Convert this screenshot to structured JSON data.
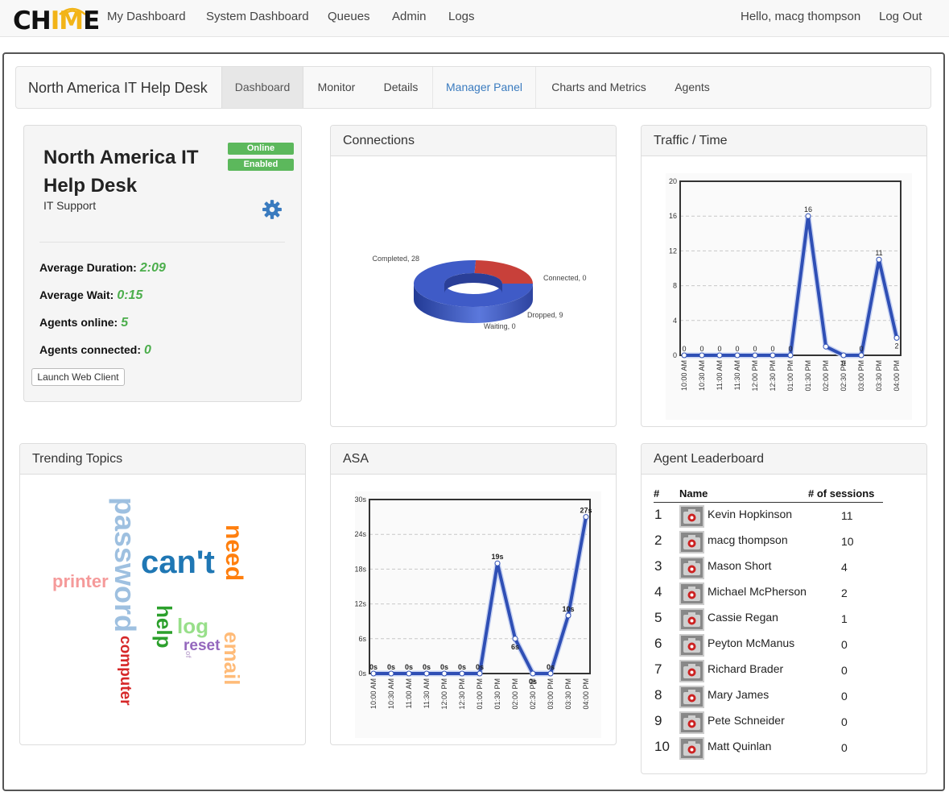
{
  "topnav": {
    "logo": {
      "before": "CH",
      "highlight": "IM",
      "after": "E"
    },
    "links": [
      "My Dashboard",
      "System Dashboard",
      "Queues",
      "Admin",
      "Logs"
    ],
    "greeting": "Hello, macg thompson",
    "logout": "Log Out"
  },
  "queue_nav": {
    "title": "North America IT Help Desk",
    "tabs": [
      "Dashboard",
      "Monitor",
      "Details",
      "Manager Panel",
      "Charts and Metrics",
      "Agents"
    ],
    "active_tab": "Dashboard"
  },
  "queue_summary": {
    "title": "North America IT Help Desk",
    "subtitle": "IT Support",
    "status_badges": [
      "Online",
      "Enabled"
    ],
    "stats": [
      {
        "label": "Average Duration:",
        "value": "2:09"
      },
      {
        "label": "Average Wait:",
        "value": "0:15"
      },
      {
        "label": "Agents online:",
        "value": "5"
      },
      {
        "label": "Agents connected:",
        "value": "0"
      }
    ],
    "launch_button": "Launch Web Client"
  },
  "panels": {
    "connections": "Connections",
    "traffic": "Traffic / Time",
    "trending": "Trending Topics",
    "asa": "ASA",
    "leaderboard": "Agent Leaderboard"
  },
  "chart_data": [
    {
      "id": "connections",
      "type": "pie",
      "style": "3d-donut",
      "labels": [
        "Completed",
        "Connected",
        "Dropped",
        "Waiting"
      ],
      "values": [
        28,
        0,
        9,
        0
      ],
      "colors": [
        "#3f5bc7",
        "#3a9a3a",
        "#c8403a",
        "#e8a020"
      ]
    },
    {
      "id": "traffic",
      "type": "line",
      "categories": [
        "10:00 AM",
        "10:30 AM",
        "11:00 AM",
        "11:30 AM",
        "12:00 PM",
        "12:30 PM",
        "01:00 PM",
        "01:30 PM",
        "02:00 PM",
        "02:30 PM",
        "03:00 PM",
        "03:30 PM",
        "04:00 PM"
      ],
      "values": [
        0,
        0,
        0,
        0,
        0,
        0,
        0,
        16,
        1,
        0,
        0,
        11,
        2
      ],
      "ylim": [
        0,
        20
      ],
      "yticks": [
        "0",
        "4",
        "8",
        "12",
        "16",
        "20"
      ],
      "point_labels": [
        "0",
        "0",
        "0",
        "0",
        "0",
        "0",
        "0",
        "16",
        "",
        "0",
        "0",
        "11",
        "2"
      ],
      "color": "#2f4fb5",
      "grid": true
    },
    {
      "id": "asa",
      "type": "line",
      "categories": [
        "10:00 AM",
        "10:30 AM",
        "11:00 AM",
        "11:30 AM",
        "12:00 PM",
        "12:30 PM",
        "01:00 PM",
        "01:30 PM",
        "02:00 PM",
        "02:30 PM",
        "03:00 PM",
        "03:30 PM",
        "04:00 PM"
      ],
      "values": [
        0,
        0,
        0,
        0,
        0,
        0,
        0,
        19,
        6,
        0,
        0,
        10,
        27
      ],
      "ylim": [
        0,
        30
      ],
      "yticks": [
        "0s",
        "6s",
        "12s",
        "18s",
        "24s",
        "30s"
      ],
      "point_labels": [
        "0s",
        "0s",
        "0s",
        "0s",
        "0s",
        "0s",
        "0s",
        "19s",
        "6s",
        "0s",
        "0s",
        "10s",
        "27s"
      ],
      "color": "#2f4fb5",
      "grid": true
    }
  ],
  "word_cloud": [
    {
      "text": "password",
      "color": "#9ec0e0",
      "orientation": "vertical-cw"
    },
    {
      "text": "can't",
      "color": "#1f77b4",
      "orientation": "horizontal"
    },
    {
      "text": "need",
      "color": "#ff7f0e",
      "orientation": "vertical-cw"
    },
    {
      "text": "printer",
      "color": "#f59a9a",
      "orientation": "horizontal"
    },
    {
      "text": "help",
      "color": "#2ca02c",
      "orientation": "vertical-cw"
    },
    {
      "text": "log",
      "color": "#98df8a",
      "orientation": "horizontal"
    },
    {
      "text": "reset",
      "color": "#9467bd",
      "orientation": "horizontal"
    },
    {
      "text": "email",
      "color": "#ffbb78",
      "orientation": "vertical-cw"
    },
    {
      "text": "computer",
      "color": "#d62728",
      "orientation": "vertical-cw"
    },
    {
      "text": "of",
      "color": "#c5b0d5",
      "orientation": "vertical-cw"
    }
  ],
  "leaderboard": {
    "headers": [
      "#",
      "Name",
      "# of sessions"
    ],
    "rows": [
      {
        "rank": "1",
        "name": "Kevin Hopkinson",
        "sessions": "11"
      },
      {
        "rank": "2",
        "name": "macg thompson",
        "sessions": "10"
      },
      {
        "rank": "3",
        "name": "Mason Short",
        "sessions": "4"
      },
      {
        "rank": "4",
        "name": "Michael McPherson",
        "sessions": "2"
      },
      {
        "rank": "5",
        "name": "Cassie Regan",
        "sessions": "1"
      },
      {
        "rank": "6",
        "name": "Peyton McManus",
        "sessions": "0"
      },
      {
        "rank": "7",
        "name": "Richard Brader",
        "sessions": "0"
      },
      {
        "rank": "8",
        "name": "Mary James",
        "sessions": "0"
      },
      {
        "rank": "9",
        "name": "Pete Schneider",
        "sessions": "0"
      },
      {
        "rank": "10",
        "name": "Matt Quinlan",
        "sessions": "0"
      }
    ]
  }
}
